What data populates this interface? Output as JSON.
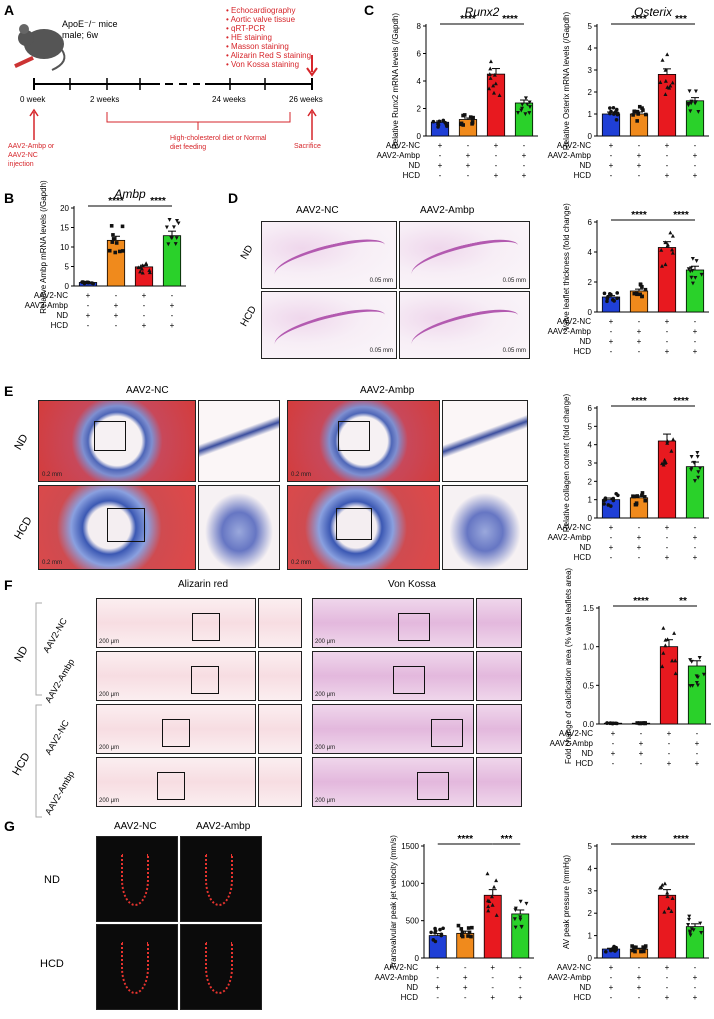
{
  "panelA": {
    "label": "A",
    "mice": "ApoE⁻/⁻ mice",
    "mice_sub": "male; 6w",
    "procedures": [
      "• Echocardiography",
      "• Aortic valve tissue",
      "• qRT-PCR",
      "• HE staining",
      "• Masson staining",
      "• Alizarin Red S staining",
      "• Von Kossa staining"
    ],
    "ticks": [
      "0 week",
      "2 weeks",
      "24 weeks",
      "26 weeks"
    ],
    "injection": "AAV2-Ambp or AAV2-NC injection",
    "diet": "High-cholesterol diet or Normal diet feeding",
    "sacrifice": "Sacrifice"
  },
  "treat_rows": [
    "AAV2-NC",
    "AAV2-Ambp",
    "ND",
    "HCD"
  ],
  "signs": [
    [
      "+",
      "-",
      "+",
      "-"
    ],
    [
      "-",
      "+",
      "-",
      "+"
    ],
    [
      "+",
      "+",
      "-",
      "-"
    ],
    [
      "-",
      "-",
      "+",
      "+"
    ]
  ],
  "colors": {
    "nc_nd": "#1f3fd6",
    "ambp_nd": "#f08a1c",
    "nc_hcd": "#e8191f",
    "ambp_hcd": "#2ad12a"
  },
  "sig": {
    "s4": "****",
    "s3": "***",
    "s2": "**"
  },
  "chart_data": [
    {
      "id": "C1",
      "type": "bar",
      "title": "Runx2",
      "ylabel": "Relative Runx2 mRNA levels (/Gapdh)",
      "ylim": [
        0,
        8
      ],
      "ticks": [
        0,
        2,
        4,
        6,
        8
      ],
      "values": [
        1.0,
        1.2,
        4.5,
        2.4
      ],
      "sig": [
        "****",
        "****"
      ]
    },
    {
      "id": "C2",
      "type": "bar",
      "title": "Osterix",
      "ylabel": "Relative Osterix mRNA levels (/Gapdh)",
      "ylim": [
        0,
        5
      ],
      "ticks": [
        0,
        1,
        2,
        3,
        4,
        5
      ],
      "values": [
        1.0,
        1.0,
        2.8,
        1.6
      ],
      "sig": [
        "****",
        "***"
      ]
    },
    {
      "id": "B",
      "type": "bar",
      "title": "Ambp",
      "ylabel": "Relative Ambp mRNA levels (/Gapdh)",
      "ylim": [
        0,
        20
      ],
      "ticks": [
        0,
        5,
        10,
        15,
        20
      ],
      "values": [
        0.9,
        11.7,
        4.9,
        12.9
      ],
      "sig": [
        "****",
        "****"
      ]
    },
    {
      "id": "D",
      "type": "bar",
      "title": "",
      "ylabel": "Valve leaflet thickness (fold change)",
      "ylim": [
        0,
        6
      ],
      "ticks": [
        0,
        2,
        4,
        6
      ],
      "values": [
        1.0,
        1.4,
        4.3,
        2.8
      ],
      "sig": [
        "****",
        "****"
      ]
    },
    {
      "id": "E",
      "type": "bar",
      "title": "",
      "ylabel": "Relative collagen content (fold change)",
      "ylim": [
        0,
        6
      ],
      "ticks": [
        0,
        1,
        2,
        3,
        4,
        5,
        6
      ],
      "values": [
        1.0,
        1.1,
        4.2,
        2.8
      ],
      "sig": [
        "****",
        "****"
      ]
    },
    {
      "id": "F",
      "type": "bar",
      "title": "",
      "ylabel": "Fold change of calcification area (% valve leaflets area)",
      "ylim": [
        0,
        1.5
      ],
      "ticks": [
        0.0,
        0.5,
        1.0,
        1.5
      ],
      "tickfmt": 1,
      "values": [
        0.01,
        0.01,
        1.0,
        0.75
      ],
      "sig": [
        "****",
        "**"
      ]
    },
    {
      "id": "G1",
      "type": "bar",
      "title": "",
      "ylabel": "Transvalvular peak jet velocity (mm/s)",
      "ylim": [
        0,
        1500
      ],
      "ticks": [
        0,
        500,
        1000,
        1500
      ],
      "values": [
        300,
        330,
        840,
        590
      ],
      "sig": [
        "****",
        "***"
      ]
    },
    {
      "id": "G2",
      "type": "bar",
      "title": "",
      "ylabel": "AV peak pressure (mmHg)",
      "ylim": [
        0,
        5
      ],
      "ticks": [
        0,
        1,
        2,
        3,
        4,
        5
      ],
      "values": [
        0.4,
        0.4,
        2.8,
        1.4
      ],
      "sig": [
        "****",
        "****"
      ]
    }
  ],
  "panelD": {
    "label": "D",
    "col1": "AAV2-NC",
    "col2": "AAV2-Ambp",
    "row1": "ND",
    "row2": "HCD",
    "scale": "0.05 mm"
  },
  "panelE": {
    "label": "E",
    "col1": "AAV2-NC",
    "col2": "AAV2-Ambp",
    "row1": "ND",
    "row2": "HCD",
    "scale": "0.2 mm"
  },
  "panelF": {
    "label": "F",
    "col1": "Alizarin red",
    "col2": "Von Kossa",
    "grp1": "ND",
    "grp2": "HCD",
    "sub1": "AAV2-NC",
    "sub2": "AAV2-Ambp",
    "scale": "200 μm"
  },
  "panelG": {
    "label": "G",
    "col1": "AAV2-NC",
    "col2": "AAV2-Ambp",
    "row1": "ND",
    "row2": "HCD"
  },
  "panelB": {
    "label": "B"
  },
  "panelC": {
    "label": "C"
  }
}
